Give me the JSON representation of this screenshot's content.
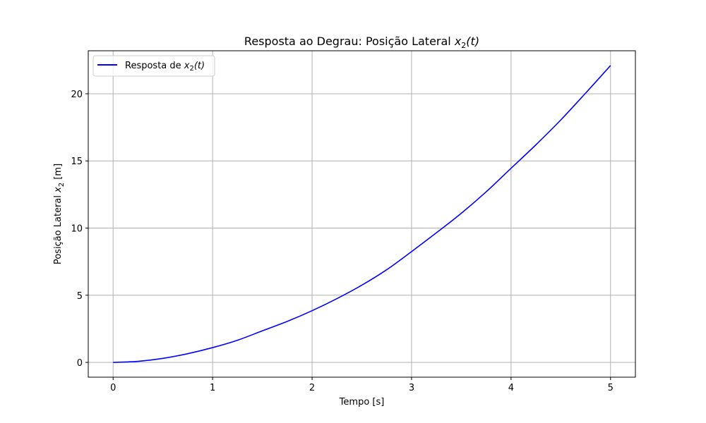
{
  "chart_data": {
    "type": "line",
    "title": {
      "text": "Resposta ao Degrau: Posição Lateral ",
      "var": "x",
      "sub": "2",
      "arg": "(t)"
    },
    "xlabel": "Tempo [s]",
    "ylabel": {
      "text": "Posição Lateral ",
      "var": "x",
      "sub": "2",
      "unit": " [m]"
    },
    "xlim": [
      -0.25,
      5.25
    ],
    "ylim": [
      -1.1,
      23.2
    ],
    "xticks": [
      0,
      1,
      2,
      3,
      4,
      5
    ],
    "yticks": [
      0,
      5,
      10,
      15,
      20
    ],
    "grid": true,
    "legend_position": "top-left",
    "series": [
      {
        "name": {
          "text": "Resposta de ",
          "var": "x",
          "sub": "2",
          "arg": "(t)"
        },
        "color": "#0000ff",
        "x": [
          0,
          0.25,
          0.5,
          0.75,
          1,
          1.25,
          1.5,
          1.75,
          2,
          2.25,
          2.5,
          2.75,
          3,
          3.25,
          3.5,
          3.75,
          4,
          4.25,
          4.5,
          4.75,
          5
        ],
        "y": [
          0,
          0.08,
          0.3,
          0.65,
          1.1,
          1.65,
          2.35,
          3.05,
          3.85,
          4.75,
          5.75,
          6.9,
          8.25,
          9.65,
          11.1,
          12.7,
          14.45,
          16.2,
          18.05,
          20.05,
          22.1
        ]
      }
    ],
    "colors": {
      "axes": "#000000",
      "grid": "#b0b0b0",
      "legend_border": "#cccccc"
    }
  }
}
